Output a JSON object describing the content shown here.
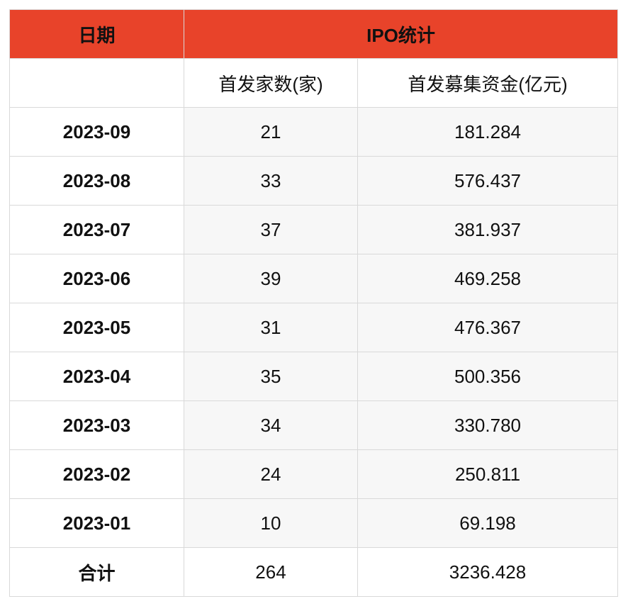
{
  "header": {
    "date_label": "日期",
    "ipo_label": "IPO统计"
  },
  "subheader": {
    "blank": "",
    "count_label": "首发家数(家)",
    "fund_label": "首发募集资金(亿元)"
  },
  "rows": [
    {
      "date": "2023-09",
      "count": "21",
      "fund": "181.284"
    },
    {
      "date": "2023-08",
      "count": "33",
      "fund": "576.437"
    },
    {
      "date": "2023-07",
      "count": "37",
      "fund": "381.937"
    },
    {
      "date": "2023-06",
      "count": "39",
      "fund": "469.258"
    },
    {
      "date": "2023-05",
      "count": "31",
      "fund": "476.367"
    },
    {
      "date": "2023-04",
      "count": "35",
      "fund": "500.356"
    },
    {
      "date": "2023-03",
      "count": "34",
      "fund": "330.780"
    },
    {
      "date": "2023-02",
      "count": "24",
      "fund": "250.811"
    },
    {
      "date": "2023-01",
      "count": "10",
      "fund": "69.198"
    }
  ],
  "total": {
    "label": "合计",
    "count": "264",
    "fund": "3236.428"
  },
  "colors": {
    "header_bg": "#e8432a",
    "header_text": "#ffffff",
    "stripe_bg": "#f7f7f7"
  }
}
